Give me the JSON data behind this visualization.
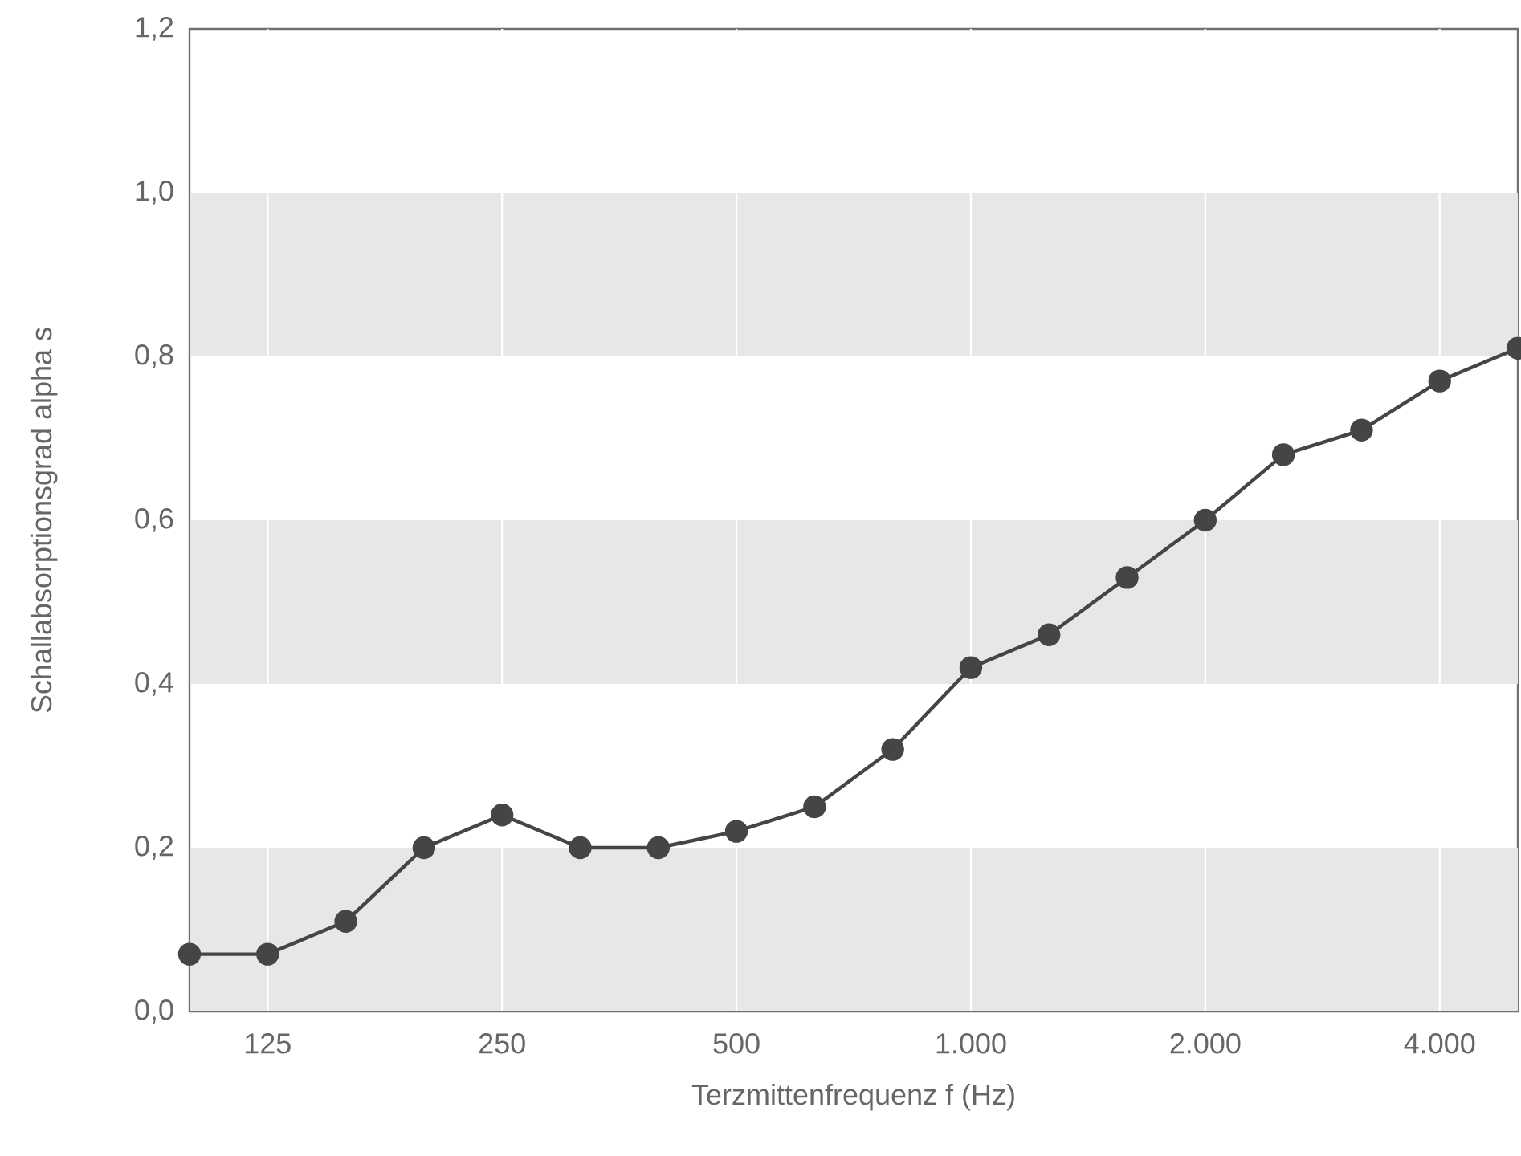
{
  "chart_data": {
    "type": "line",
    "xlabel": "Terzmittenfrequenz f (Hz)",
    "ylabel": "Schallabsorptionsgrad alpha s",
    "categories": [
      null,
      "125",
      null,
      null,
      "250",
      null,
      null,
      "500",
      null,
      null,
      "1.000",
      null,
      null,
      "2.000",
      null,
      null,
      "4.000",
      null
    ],
    "series": [
      {
        "color": "#454547",
        "values": [
          0.07,
          0.07,
          0.11,
          0.2,
          0.24,
          0.2,
          0.2,
          0.22,
          0.25,
          0.32,
          0.42,
          0.46,
          0.53,
          0.6,
          0.68,
          0.71,
          0.77,
          0.81
        ]
      }
    ],
    "ylim": [
      0,
      1.2
    ],
    "yticks": [
      {
        "value": 0,
        "label": "0,0"
      },
      {
        "value": 0.2,
        "label": "0,2"
      },
      {
        "value": 0.4,
        "label": "0,4"
      },
      {
        "value": 0.6,
        "label": "0,6"
      },
      {
        "value": 0.8,
        "label": "0,8"
      },
      {
        "value": 1.0,
        "label": "1,0"
      },
      {
        "value": 1.2,
        "label": "1,2"
      }
    ],
    "bands": [
      {
        "axis": "y",
        "from": 0,
        "to": 0.2,
        "color": "#e6e7e8"
      },
      {
        "axis": "y",
        "from": 0.4,
        "to": 0.6,
        "color": "#e6e7e8"
      },
      {
        "axis": "y",
        "from": 0.8,
        "to": 1.0,
        "color": "#e6e7e8"
      }
    ],
    "grid": "x",
    "marker": "circle",
    "line_style": "solid"
  }
}
